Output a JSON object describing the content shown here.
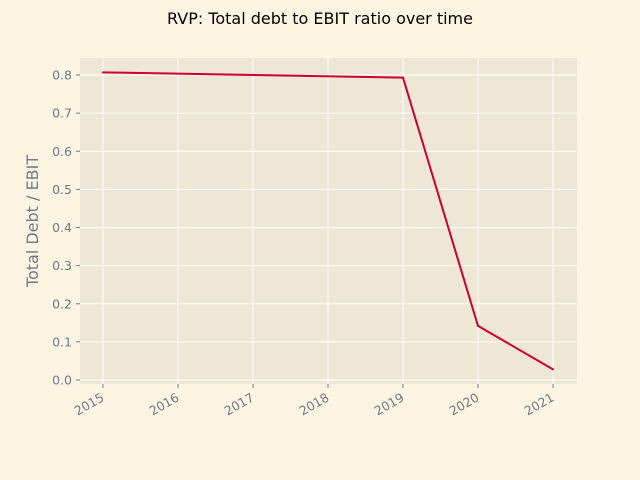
{
  "colors": {
    "background": "#fdf5e2",
    "plot_background": "#efe7d6",
    "grid": "#ffffff",
    "line": "#cc0033",
    "text": "#6b7b8c"
  },
  "chart_data": {
    "type": "line",
    "title": "RVP: Total debt to EBIT ratio over time",
    "xlabel": "",
    "ylabel": "Total Debt / EBIT",
    "x": [
      "2015",
      "2016",
      "2017",
      "2018",
      "2019",
      "2020",
      "2021"
    ],
    "ylim": [
      0,
      0.8
    ],
    "yticks": [
      "0.0",
      "0.1",
      "0.2",
      "0.3",
      "0.4",
      "0.5",
      "0.6",
      "0.7",
      "0.8"
    ],
    "grid": true,
    "series": [
      {
        "x": [
          "2015",
          "2019",
          "2020",
          "2021"
        ],
        "values": [
          0.807,
          0.793,
          0.142,
          0.028
        ]
      }
    ]
  }
}
